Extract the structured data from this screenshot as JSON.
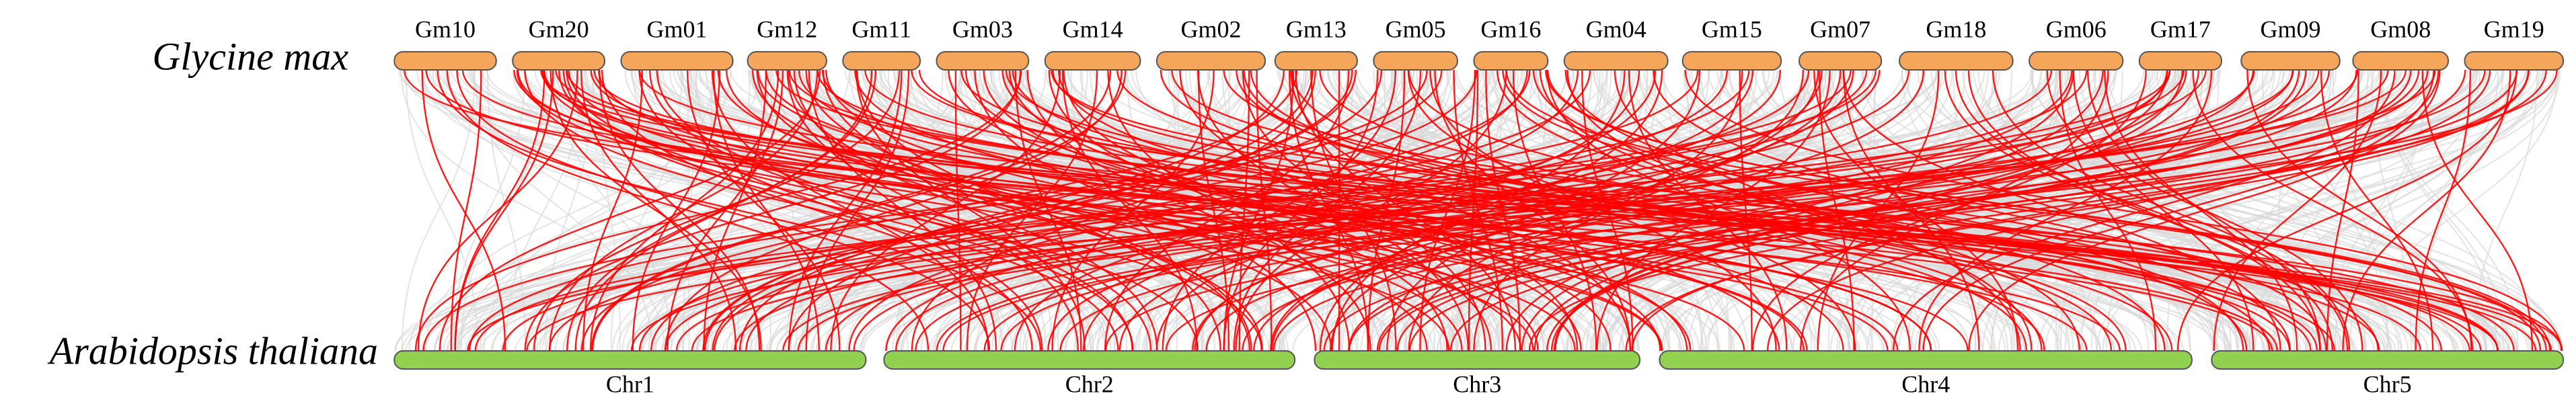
{
  "species": {
    "top": "Glycine max",
    "bottom": "Arabidopsis thaliana"
  },
  "top_chromosomes": [
    "Gm10",
    "Gm20",
    "Gm01",
    "Gm12",
    "Gm11",
    "Gm03",
    "Gm14",
    "Gm02",
    "Gm13",
    "Gm05",
    "Gm16",
    "Gm04",
    "Gm15",
    "Gm07",
    "Gm18",
    "Gm06",
    "Gm17",
    "Gm09",
    "Gm08",
    "Gm19"
  ],
  "bottom_chromosomes": [
    "Chr1",
    "Chr2",
    "Chr3",
    "Chr4",
    "Chr5"
  ]
}
